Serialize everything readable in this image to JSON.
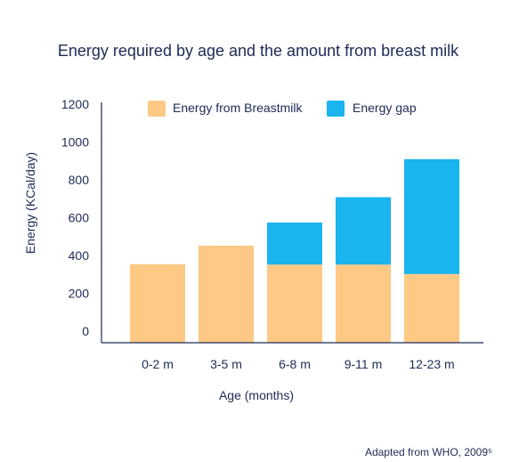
{
  "chart_data": {
    "type": "bar",
    "stacked": true,
    "title": "Energy required by age and the amount from breast milk",
    "xlabel": "Age (months)",
    "ylabel": "Energy (KCal/day)",
    "ylim": [
      0,
      1200
    ],
    "yticks": [
      "0",
      "200",
      "400",
      "600",
      "800",
      "1000",
      "1200"
    ],
    "ytick_values": [
      0,
      200,
      400,
      600,
      800,
      1000,
      1200
    ],
    "categories": [
      "0-2 m",
      "3-5 m",
      "6-8 m",
      "9-11 m",
      "12-23 m"
    ],
    "series": [
      {
        "name": "Energy from Breastmilk",
        "color": "#fdc985",
        "values": [
          415,
          513,
          413,
          413,
          363
        ]
      },
      {
        "name": "Energy gap",
        "color": "#1ab5ef",
        "values": [
          0,
          0,
          222,
          356,
          607
        ]
      }
    ],
    "legend_position": "top",
    "grid": false,
    "source": "Adapted from WHO, 2009⁵"
  },
  "colors": {
    "text": "#1e2a55",
    "axis": "#1e2a55",
    "breastmilk": "#fdc985",
    "gap": "#1ab5ef"
  }
}
